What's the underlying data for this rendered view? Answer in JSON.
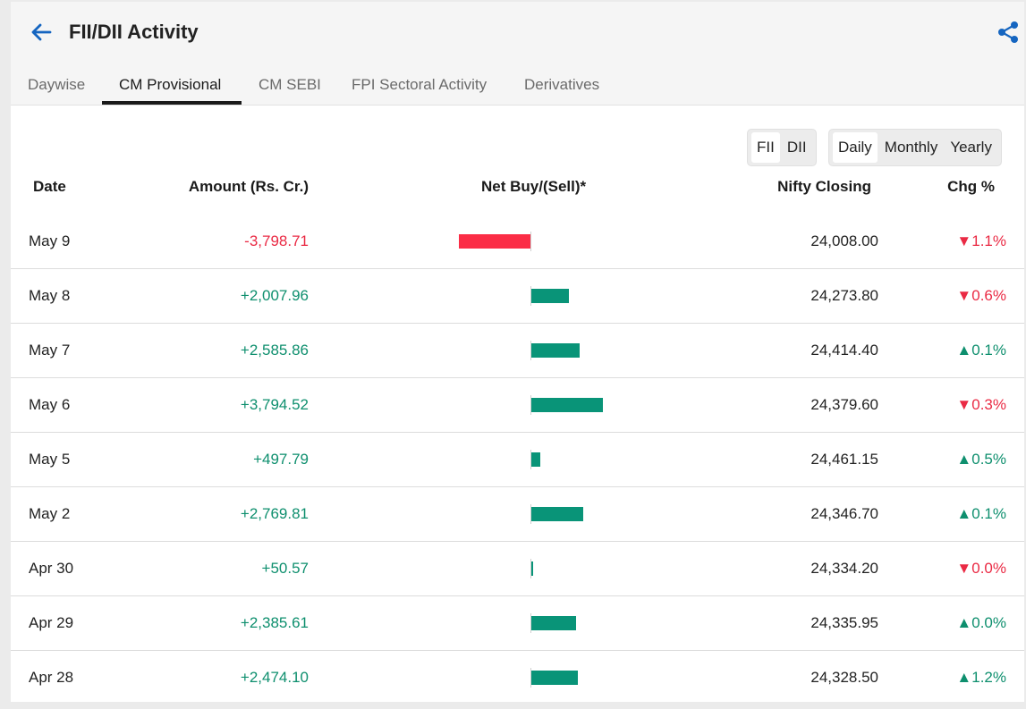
{
  "header": {
    "title": "FII/DII Activity",
    "back_icon": "arrow-left-icon",
    "share_icon": "share-icon",
    "accent": "#1565c0"
  },
  "tabs": [
    {
      "label": "Daywise",
      "active": false
    },
    {
      "label": "CM Provisional",
      "active": true
    },
    {
      "label": "CM SEBI",
      "active": false
    },
    {
      "label": "FPI Sectoral Activity",
      "active": false
    },
    {
      "label": "Derivatives",
      "active": false
    }
  ],
  "investor_toggle": [
    {
      "label": "FII",
      "selected": true
    },
    {
      "label": "DII",
      "selected": false
    }
  ],
  "period_toggle": [
    {
      "label": "Daily",
      "selected": true
    },
    {
      "label": "Monthly",
      "selected": false
    },
    {
      "label": "Yearly",
      "selected": false
    }
  ],
  "table": {
    "headers": {
      "date": "Date",
      "amount": "Amount (Rs. Cr.)",
      "net": "Net Buy/(Sell)*",
      "nifty": "Nifty Closing",
      "chg": "Chg %"
    },
    "colors": {
      "positive": "#0e8f6e",
      "negative": "#ea2a44",
      "bar_positive": "#099478",
      "bar_negative": "#fb2d46"
    },
    "rows": [
      {
        "date": "May 9",
        "amount": "-3,798.71",
        "value": -3798.71,
        "nifty": "24,008.00",
        "chg": "▼1.1%",
        "chg_dir": "down"
      },
      {
        "date": "May 8",
        "amount": "+2,007.96",
        "value": 2007.96,
        "nifty": "24,273.80",
        "chg": "▼0.6%",
        "chg_dir": "down"
      },
      {
        "date": "May 7",
        "amount": "+2,585.86",
        "value": 2585.86,
        "nifty": "24,414.40",
        "chg": "▲0.1%",
        "chg_dir": "up"
      },
      {
        "date": "May 6",
        "amount": "+3,794.52",
        "value": 3794.52,
        "nifty": "24,379.60",
        "chg": "▼0.3%",
        "chg_dir": "down"
      },
      {
        "date": "May 5",
        "amount": "+497.79",
        "value": 497.79,
        "nifty": "24,461.15",
        "chg": "▲0.5%",
        "chg_dir": "up"
      },
      {
        "date": "May 2",
        "amount": "+2,769.81",
        "value": 2769.81,
        "nifty": "24,346.70",
        "chg": "▲0.1%",
        "chg_dir": "up"
      },
      {
        "date": "Apr 30",
        "amount": "+50.57",
        "value": 50.57,
        "nifty": "24,334.20",
        "chg": "▼0.0%",
        "chg_dir": "down"
      },
      {
        "date": "Apr 29",
        "amount": "+2,385.61",
        "value": 2385.61,
        "nifty": "24,335.95",
        "chg": "▲0.0%",
        "chg_dir": "up"
      },
      {
        "date": "Apr 28",
        "amount": "+2,474.10",
        "value": 2474.1,
        "nifty": "24,328.50",
        "chg": "▲1.2%",
        "chg_dir": "up"
      }
    ]
  }
}
